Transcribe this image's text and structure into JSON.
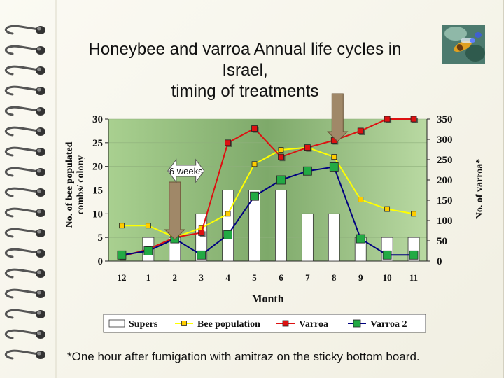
{
  "title_lines": [
    "Honeybee and varroa Annual life cycles in",
    "Israel,",
    "timing of treatments"
  ],
  "footnote": "*One hour after fumigation with amitraz on the sticky bottom board.",
  "chart_data": {
    "type": "bar+line",
    "xlabel": "Month",
    "ylabel_left": [
      "No. of bee populated",
      "combs/ colony"
    ],
    "ylabel_right": "No. of varroa*",
    "categories": [
      "12",
      "1",
      "2",
      "3",
      "4",
      "5",
      "6",
      "7",
      "8",
      "9",
      "10",
      "11"
    ],
    "ylim_left": [
      0,
      30
    ],
    "yticks_left": [
      0,
      5,
      10,
      15,
      20,
      25,
      30
    ],
    "ylim_right": [
      0,
      350
    ],
    "yticks_right": [
      0,
      50,
      100,
      150,
      200,
      250,
      300,
      350
    ],
    "legend_position": "bottom",
    "series": [
      {
        "name": "Supers",
        "kind": "bar",
        "axis": "left",
        "color": "#ffffff",
        "values": [
          0,
          5,
          5,
          10,
          15,
          15,
          15,
          10,
          10,
          5,
          5,
          5
        ]
      },
      {
        "name": "Bee population",
        "kind": "line",
        "axis": "left",
        "color": "#ffff00",
        "marker": "#ffcc00",
        "values": [
          7.5,
          7.5,
          5,
          7,
          10,
          20.5,
          23.5,
          24,
          22,
          13,
          11,
          10
        ]
      },
      {
        "name": "Varroa",
        "kind": "line",
        "axis": "left",
        "color": "#dd1111",
        "marker": "#dd1111",
        "values": [
          1,
          2.5,
          5,
          6,
          25,
          28,
          22,
          24,
          25.5,
          27.5,
          30,
          30
        ]
      },
      {
        "name": "Varroa 2",
        "kind": "line",
        "axis": "right",
        "color": "#000080",
        "marker": "#22aa44",
        "values": [
          15,
          25,
          55,
          15,
          65,
          160,
          200,
          222,
          232,
          55,
          15,
          15
        ]
      }
    ],
    "annotations": [
      {
        "text": "6 weeks",
        "type": "double-arrow",
        "between": [
          "2",
          "3"
        ]
      },
      {
        "type": "down-arrow",
        "at": "2",
        "meaning": "treatment"
      },
      {
        "type": "down-arrow",
        "at": "8",
        "meaning": "treatment"
      }
    ]
  }
}
